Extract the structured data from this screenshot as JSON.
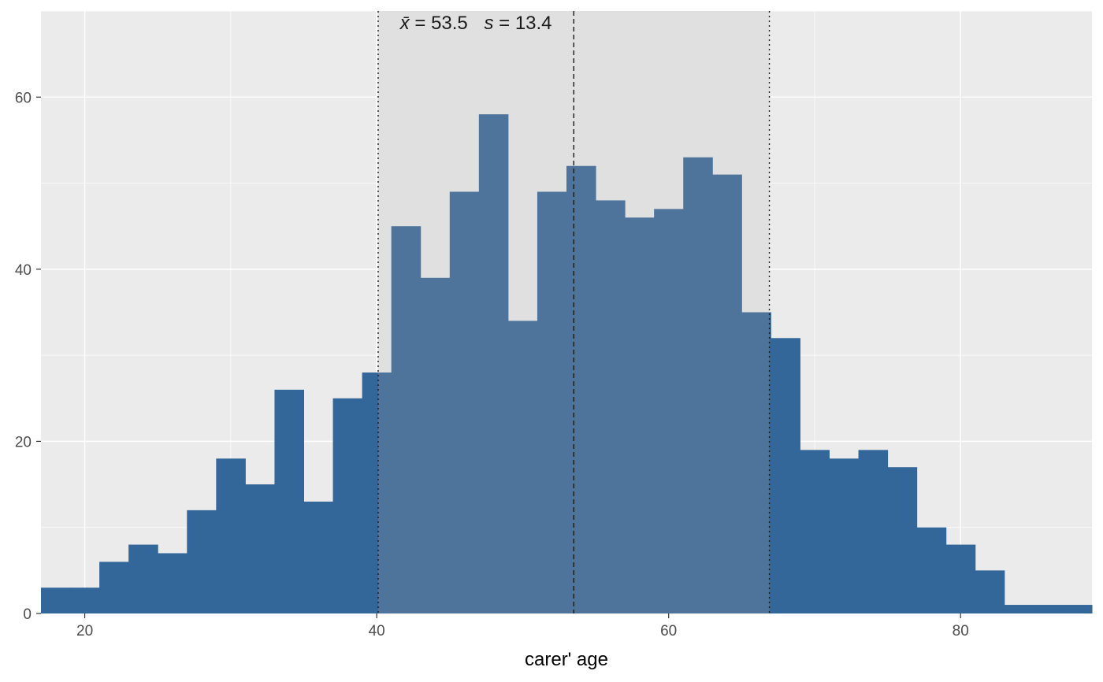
{
  "chart_data": {
    "type": "bar",
    "subtype": "histogram",
    "xlabel": "carer' age",
    "ylabel": "",
    "xlim": [
      17,
      89
    ],
    "ylim": [
      0,
      70
    ],
    "x_ticks": [
      20,
      40,
      60,
      80
    ],
    "y_ticks": [
      0,
      20,
      40,
      60
    ],
    "grid": true,
    "bin_width": 2,
    "bins": [
      {
        "x0": 17,
        "x1": 19,
        "count": 3
      },
      {
        "x0": 19,
        "x1": 21,
        "count": 3
      },
      {
        "x0": 21,
        "x1": 23,
        "count": 6
      },
      {
        "x0": 23,
        "x1": 25,
        "count": 8
      },
      {
        "x0": 25,
        "x1": 27,
        "count": 7
      },
      {
        "x0": 27,
        "x1": 29,
        "count": 12
      },
      {
        "x0": 29,
        "x1": 31,
        "count": 18
      },
      {
        "x0": 31,
        "x1": 33,
        "count": 15
      },
      {
        "x0": 33,
        "x1": 35,
        "count": 26
      },
      {
        "x0": 35,
        "x1": 37,
        "count": 13
      },
      {
        "x0": 37,
        "x1": 39,
        "count": 25
      },
      {
        "x0": 39,
        "x1": 41,
        "count": 28
      },
      {
        "x0": 41,
        "x1": 43,
        "count": 45
      },
      {
        "x0": 43,
        "x1": 45,
        "count": 39
      },
      {
        "x0": 45,
        "x1": 47,
        "count": 49
      },
      {
        "x0": 47,
        "x1": 49,
        "count": 58
      },
      {
        "x0": 49,
        "x1": 51,
        "count": 34
      },
      {
        "x0": 51,
        "x1": 53,
        "count": 49
      },
      {
        "x0": 53,
        "x1": 55,
        "count": 52
      },
      {
        "x0": 55,
        "x1": 57,
        "count": 48
      },
      {
        "x0": 57,
        "x1": 59,
        "count": 46
      },
      {
        "x0": 59,
        "x1": 61,
        "count": 47
      },
      {
        "x0": 61,
        "x1": 63,
        "count": 53
      },
      {
        "x0": 63,
        "x1": 65,
        "count": 51
      },
      {
        "x0": 65,
        "x1": 67,
        "count": 35
      },
      {
        "x0": 67,
        "x1": 69,
        "count": 32
      },
      {
        "x0": 69,
        "x1": 71,
        "count": 19
      },
      {
        "x0": 71,
        "x1": 73,
        "count": 18
      },
      {
        "x0": 73,
        "x1": 75,
        "count": 19
      },
      {
        "x0": 75,
        "x1": 77,
        "count": 17
      },
      {
        "x0": 77,
        "x1": 79,
        "count": 10
      },
      {
        "x0": 79,
        "x1": 81,
        "count": 8
      },
      {
        "x0": 81,
        "x1": 83,
        "count": 5
      },
      {
        "x0": 83,
        "x1": 85,
        "count": 1
      },
      {
        "x0": 85,
        "x1": 87,
        "count": 1
      },
      {
        "x0": 87,
        "x1": 89,
        "count": 1
      }
    ],
    "mean": 53.5,
    "sd": 13.4,
    "sd_band": [
      40.1,
      66.9
    ],
    "annotation": {
      "mean_symbol": "x̄",
      "sd_symbol": "s",
      "equals": "=",
      "mean_text": "53.5",
      "sd_text": "13.4"
    },
    "colors": {
      "bar": "#336699",
      "bar_in_band": "#4e749c",
      "panel": "#ebebeb",
      "band": "#e0e0e0",
      "grid": "#ffffff"
    }
  }
}
